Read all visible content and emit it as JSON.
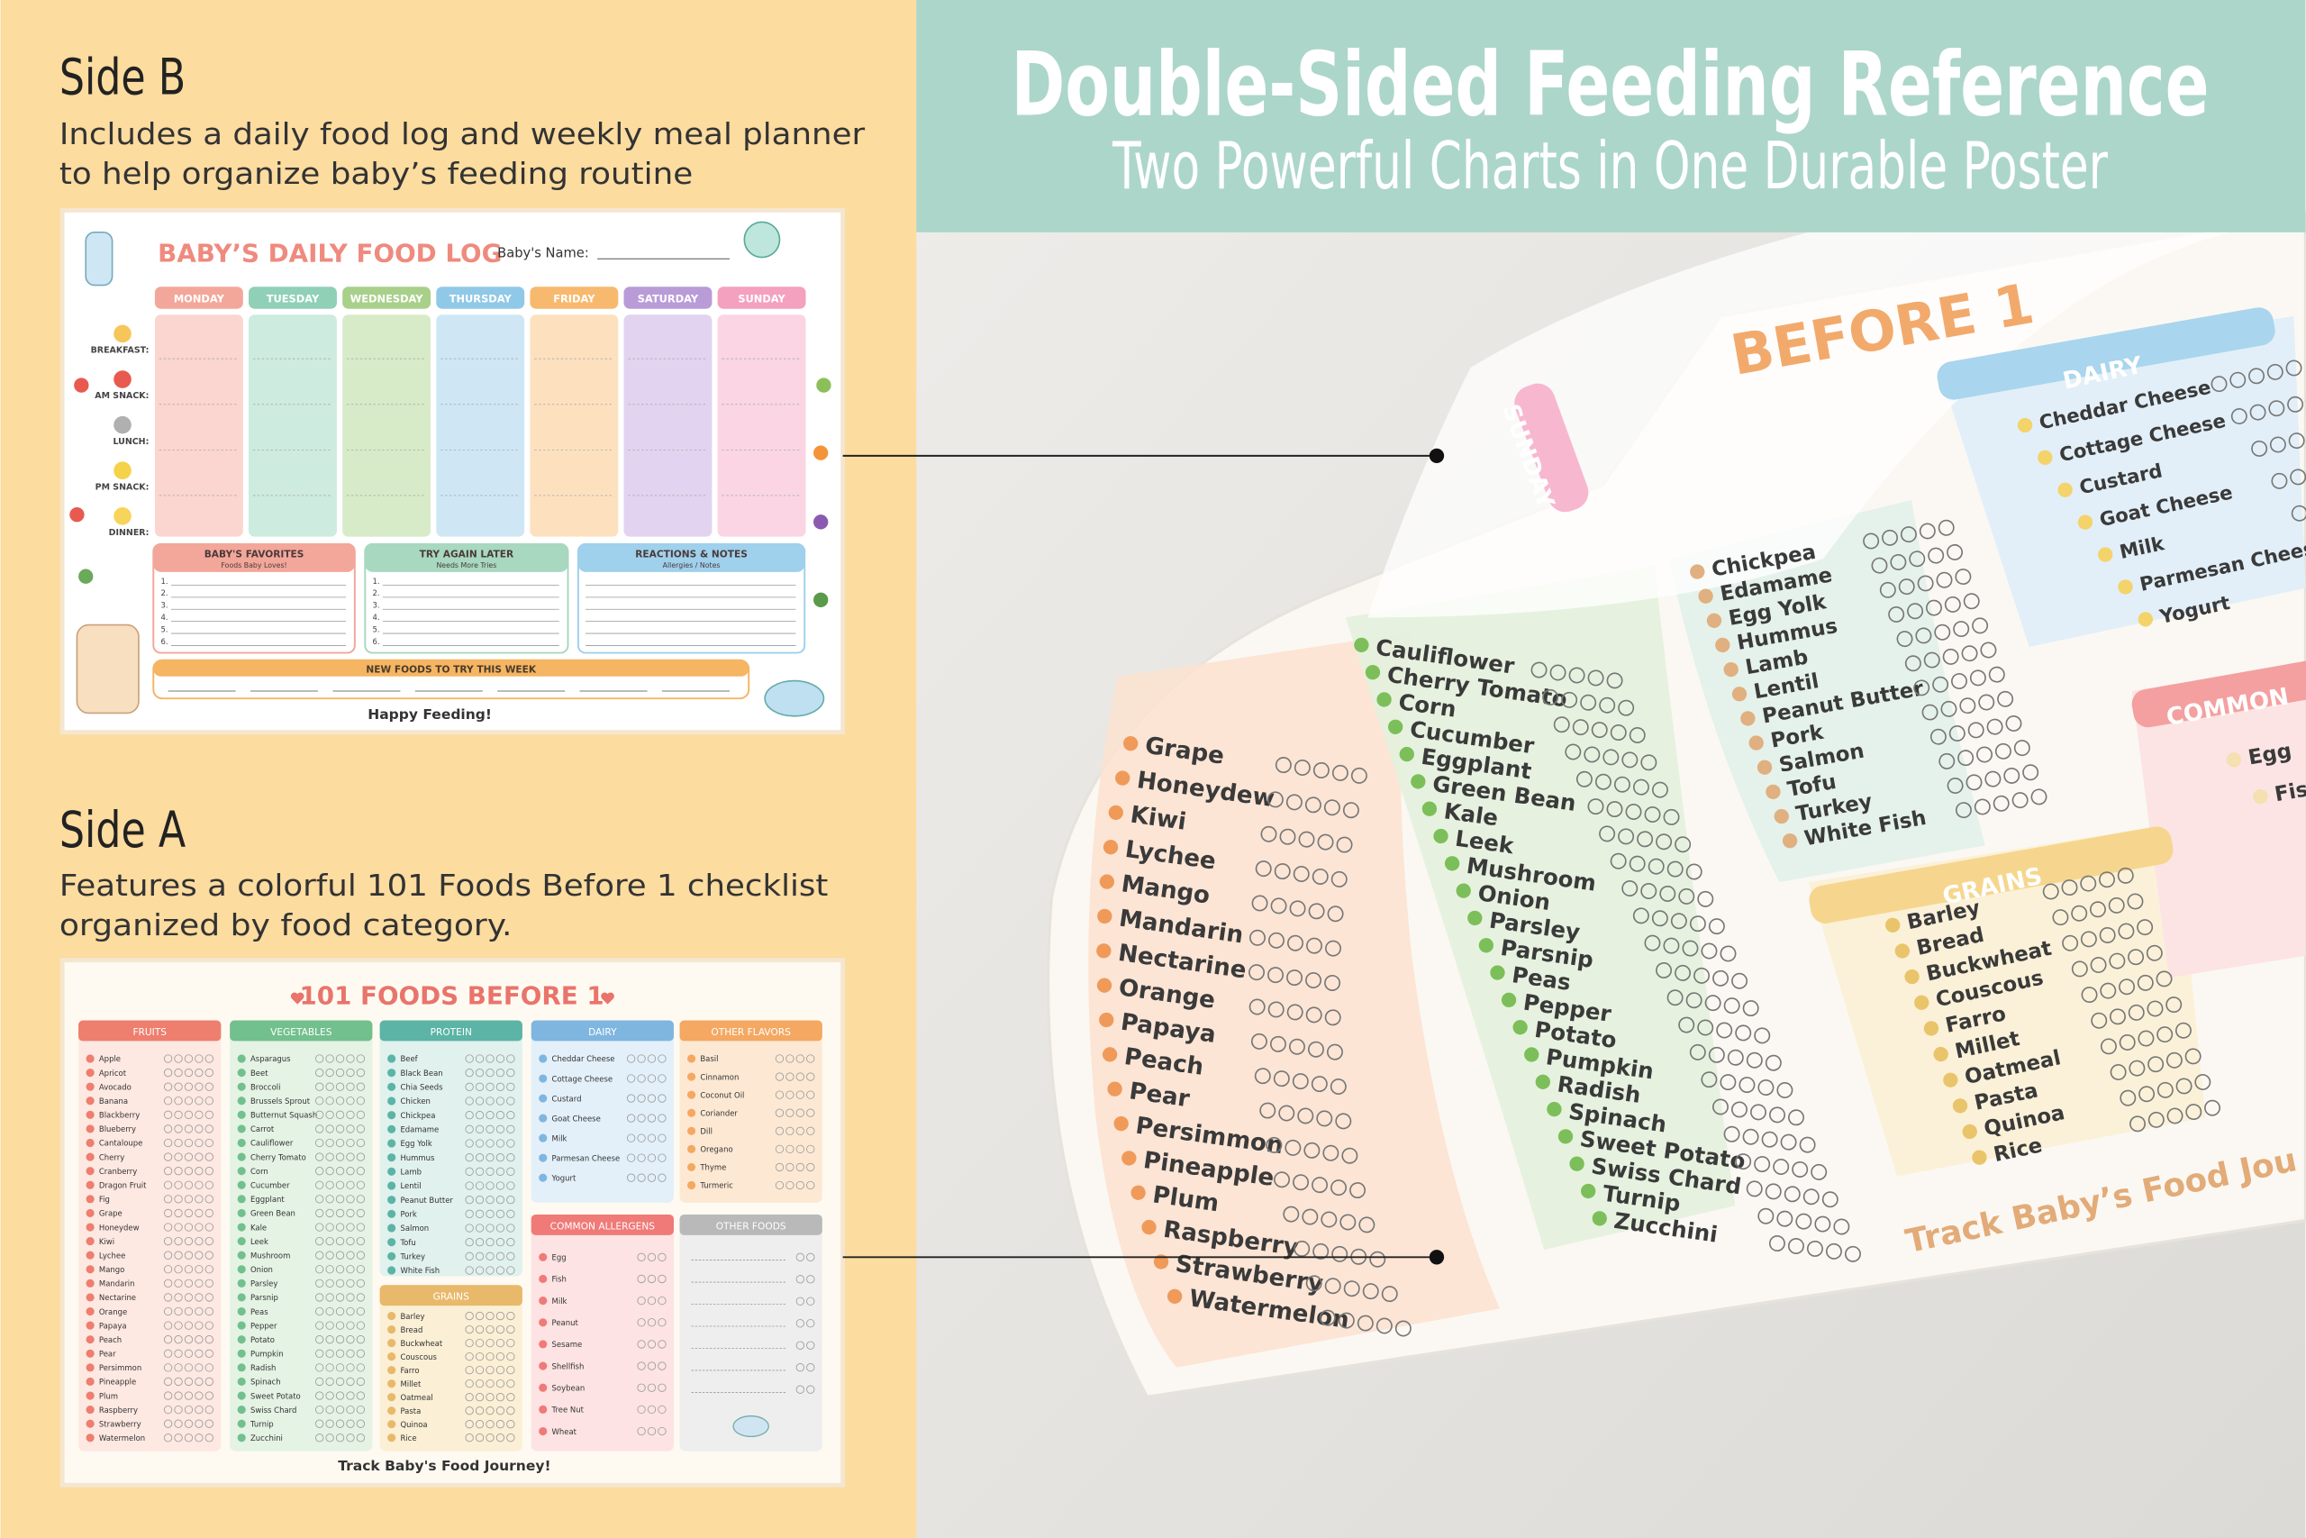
{
  "header": {
    "title": "Double-Sided Feeding Reference",
    "subtitle": "Two Powerful Charts in One Durable Poster"
  },
  "side_b": {
    "heading": "Side B",
    "description_lines": [
      "Includes a daily food log and weekly meal planner",
      "to help organize baby’s feeding routine"
    ],
    "chart": {
      "title": "BABY’S DAILY FOOD LOG",
      "name_label": "Baby's Name:",
      "days": [
        "MONDAY",
        "TUESDAY",
        "WEDNESDAY",
        "THURSDAY",
        "FRIDAY",
        "SATURDAY",
        "SUNDAY"
      ],
      "meals": [
        "BREAKFAST:",
        "AM SNACK:",
        "LUNCH:",
        "PM SNACK:",
        "DINNER:"
      ],
      "boxes": [
        {
          "title": "BABY'S FAVORITES",
          "subtitle": "Foods Baby Loves!"
        },
        {
          "title": "TRY AGAIN LATER",
          "subtitle": "Needs More Tries"
        },
        {
          "title": "REACTIONS & NOTES",
          "subtitle": "Allergies / Notes"
        }
      ],
      "list_numbers": [
        "1.",
        "2.",
        "3.",
        "4.",
        "5.",
        "6."
      ],
      "new_foods": "NEW FOODS TO TRY THIS WEEK",
      "footer": "Happy Feeding!"
    }
  },
  "side_a": {
    "heading": "Side A",
    "description_lines": [
      "Features a colorful 101 Foods Before 1 checklist",
      "organized by food category."
    ],
    "chart": {
      "title": "101 FOODS BEFORE 1",
      "groups": [
        {
          "name": "FRUITS",
          "foods": [
            "Apple",
            "Apricot",
            "Avocado",
            "Banana",
            "Blackberry",
            "Blueberry",
            "Cantaloupe",
            "Cherry",
            "Cranberry",
            "Dragon Fruit",
            "Fig",
            "Grape",
            "Honeydew",
            "Kiwi",
            "Lychee",
            "Mango",
            "Mandarin",
            "Nectarine",
            "Orange",
            "Papaya",
            "Peach",
            "Pear",
            "Persimmon",
            "Pineapple",
            "Plum",
            "Raspberry",
            "Strawberry",
            "Watermelon"
          ]
        },
        {
          "name": "VEGETABLES",
          "foods": [
            "Asparagus",
            "Beet",
            "Broccoli",
            "Brussels Sprout",
            "Butternut Squash",
            "Carrot",
            "Cauliflower",
            "Cherry Tomato",
            "Corn",
            "Cucumber",
            "Eggplant",
            "Green Bean",
            "Kale",
            "Leek",
            "Mushroom",
            "Onion",
            "Parsley",
            "Parsnip",
            "Peas",
            "Pepper",
            "Potato",
            "Pumpkin",
            "Radish",
            "Spinach",
            "Sweet Potato",
            "Swiss Chard",
            "Turnip",
            "Zucchini"
          ]
        },
        {
          "name": "PROTEIN",
          "foods": [
            "Beef",
            "Black Bean",
            "Chia Seeds",
            "Chicken",
            "Chickpea",
            "Edamame",
            "Egg Yolk",
            "Hummus",
            "Lamb",
            "Lentil",
            "Peanut Butter",
            "Pork",
            "Salmon",
            "Tofu",
            "Turkey",
            "White Fish"
          ]
        },
        {
          "name": "GRAINS",
          "foods": [
            "Barley",
            "Bread",
            "Buckwheat",
            "Couscous",
            "Farro",
            "Millet",
            "Oatmeal",
            "Pasta",
            "Quinoa",
            "Rice"
          ]
        },
        {
          "name": "DAIRY",
          "foods": [
            "Cheddar Cheese",
            "Cottage Cheese",
            "Custard",
            "Goat Cheese",
            "Milk",
            "Parmesan Cheese",
            "Yogurt"
          ]
        },
        {
          "name": "OTHER FLAVORS",
          "foods": [
            "Basil",
            "Cinnamon",
            "Coconut Oil",
            "Coriander",
            "Dill",
            "Oregano",
            "Thyme",
            "Turmeric"
          ]
        },
        {
          "name": "COMMON ALLERGENS",
          "foods": [
            "Egg",
            "Fish",
            "Milk",
            "Peanut",
            "Sesame",
            "Shellfish",
            "Soybean",
            "Tree Nut",
            "Wheat"
          ]
        },
        {
          "name": "OTHER FOODS"
        }
      ],
      "footer": "Track Baby's Food Journey!"
    }
  },
  "photo": {
    "title": "BEFORE 1",
    "tab": "SUNDAY",
    "footer": "Track Baby’s Food Jou",
    "groups": [
      {
        "foods": [
          "Grape",
          "Honeydew",
          "Kiwi",
          "Lychee",
          "Mango",
          "Mandarin",
          "Nectarine",
          "Orange",
          "Papaya",
          "Peach",
          "Pear",
          "Persimmon",
          "Pineapple",
          "Plum",
          "Raspberry",
          "Strawberry",
          "Watermelon"
        ]
      },
      {
        "foods": [
          "Cauliflower",
          "Cherry Tomato",
          "Corn",
          "Cucumber",
          "Eggplant",
          "Green Bean",
          "Kale",
          "Leek",
          "Mushroom",
          "Onion",
          "Parsley",
          "Parsnip",
          "Peas",
          "Pepper",
          "Potato",
          "Pumpkin",
          "Radish",
          "Spinach",
          "Sweet Potato",
          "Swiss Chard",
          "Turnip",
          "Zucchini"
        ]
      },
      {
        "foods": [
          "Chickpea",
          "Edamame",
          "Egg Yolk",
          "Hummus",
          "Lamb",
          "Lentil",
          "Peanut Butter",
          "Pork",
          "Salmon",
          "Tofu",
          "Turkey",
          "White Fish"
        ]
      },
      {
        "name": "DAIRY",
        "foods": [
          "Cheddar Cheese",
          "Cottage Cheese",
          "Custard",
          "Goat Cheese",
          "Milk",
          "Parmesan Cheese",
          "Yogurt"
        ]
      },
      {
        "name": "GRAINS",
        "foods": [
          "Barley",
          "Bread",
          "Buckwheat",
          "Couscous",
          "Farro",
          "Millet",
          "Oatmeal",
          "Pasta",
          "Quinoa",
          "Rice"
        ]
      },
      {
        "name": "COMMON",
        "foods": [
          "Egg",
          "Fis"
        ]
      }
    ]
  }
}
